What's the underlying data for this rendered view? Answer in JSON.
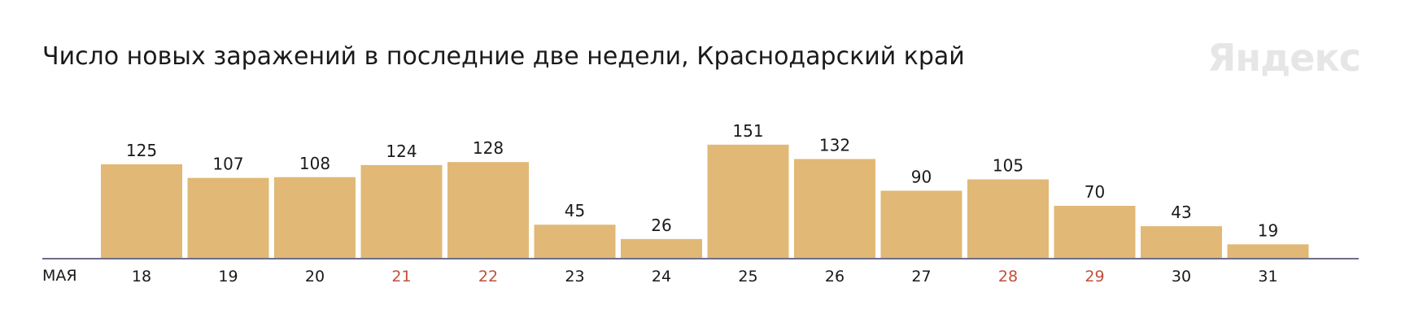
{
  "title": "Число новых заражений в последние две недели, Краснодарский край",
  "logo_text": "Яндекс",
  "month_label": "МАЯ",
  "colors": {
    "bar": "#e1b876",
    "axis": "#6e6e8a",
    "weekend_label": "#c0503a",
    "text": "#1a1a1a"
  },
  "chart_data": {
    "type": "bar",
    "categories": [
      "18",
      "19",
      "20",
      "21",
      "22",
      "23",
      "24",
      "25",
      "26",
      "27",
      "28",
      "29",
      "30",
      "31"
    ],
    "values": [
      125,
      107,
      108,
      124,
      128,
      45,
      26,
      151,
      132,
      90,
      105,
      70,
      43,
      19
    ],
    "highlighted_categories": [
      "21",
      "22",
      "28",
      "29"
    ],
    "title": "Число новых заражений в последние две недели, Краснодарский край",
    "xlabel": "МАЯ",
    "ylabel": "",
    "grid": false,
    "legend": "none"
  }
}
